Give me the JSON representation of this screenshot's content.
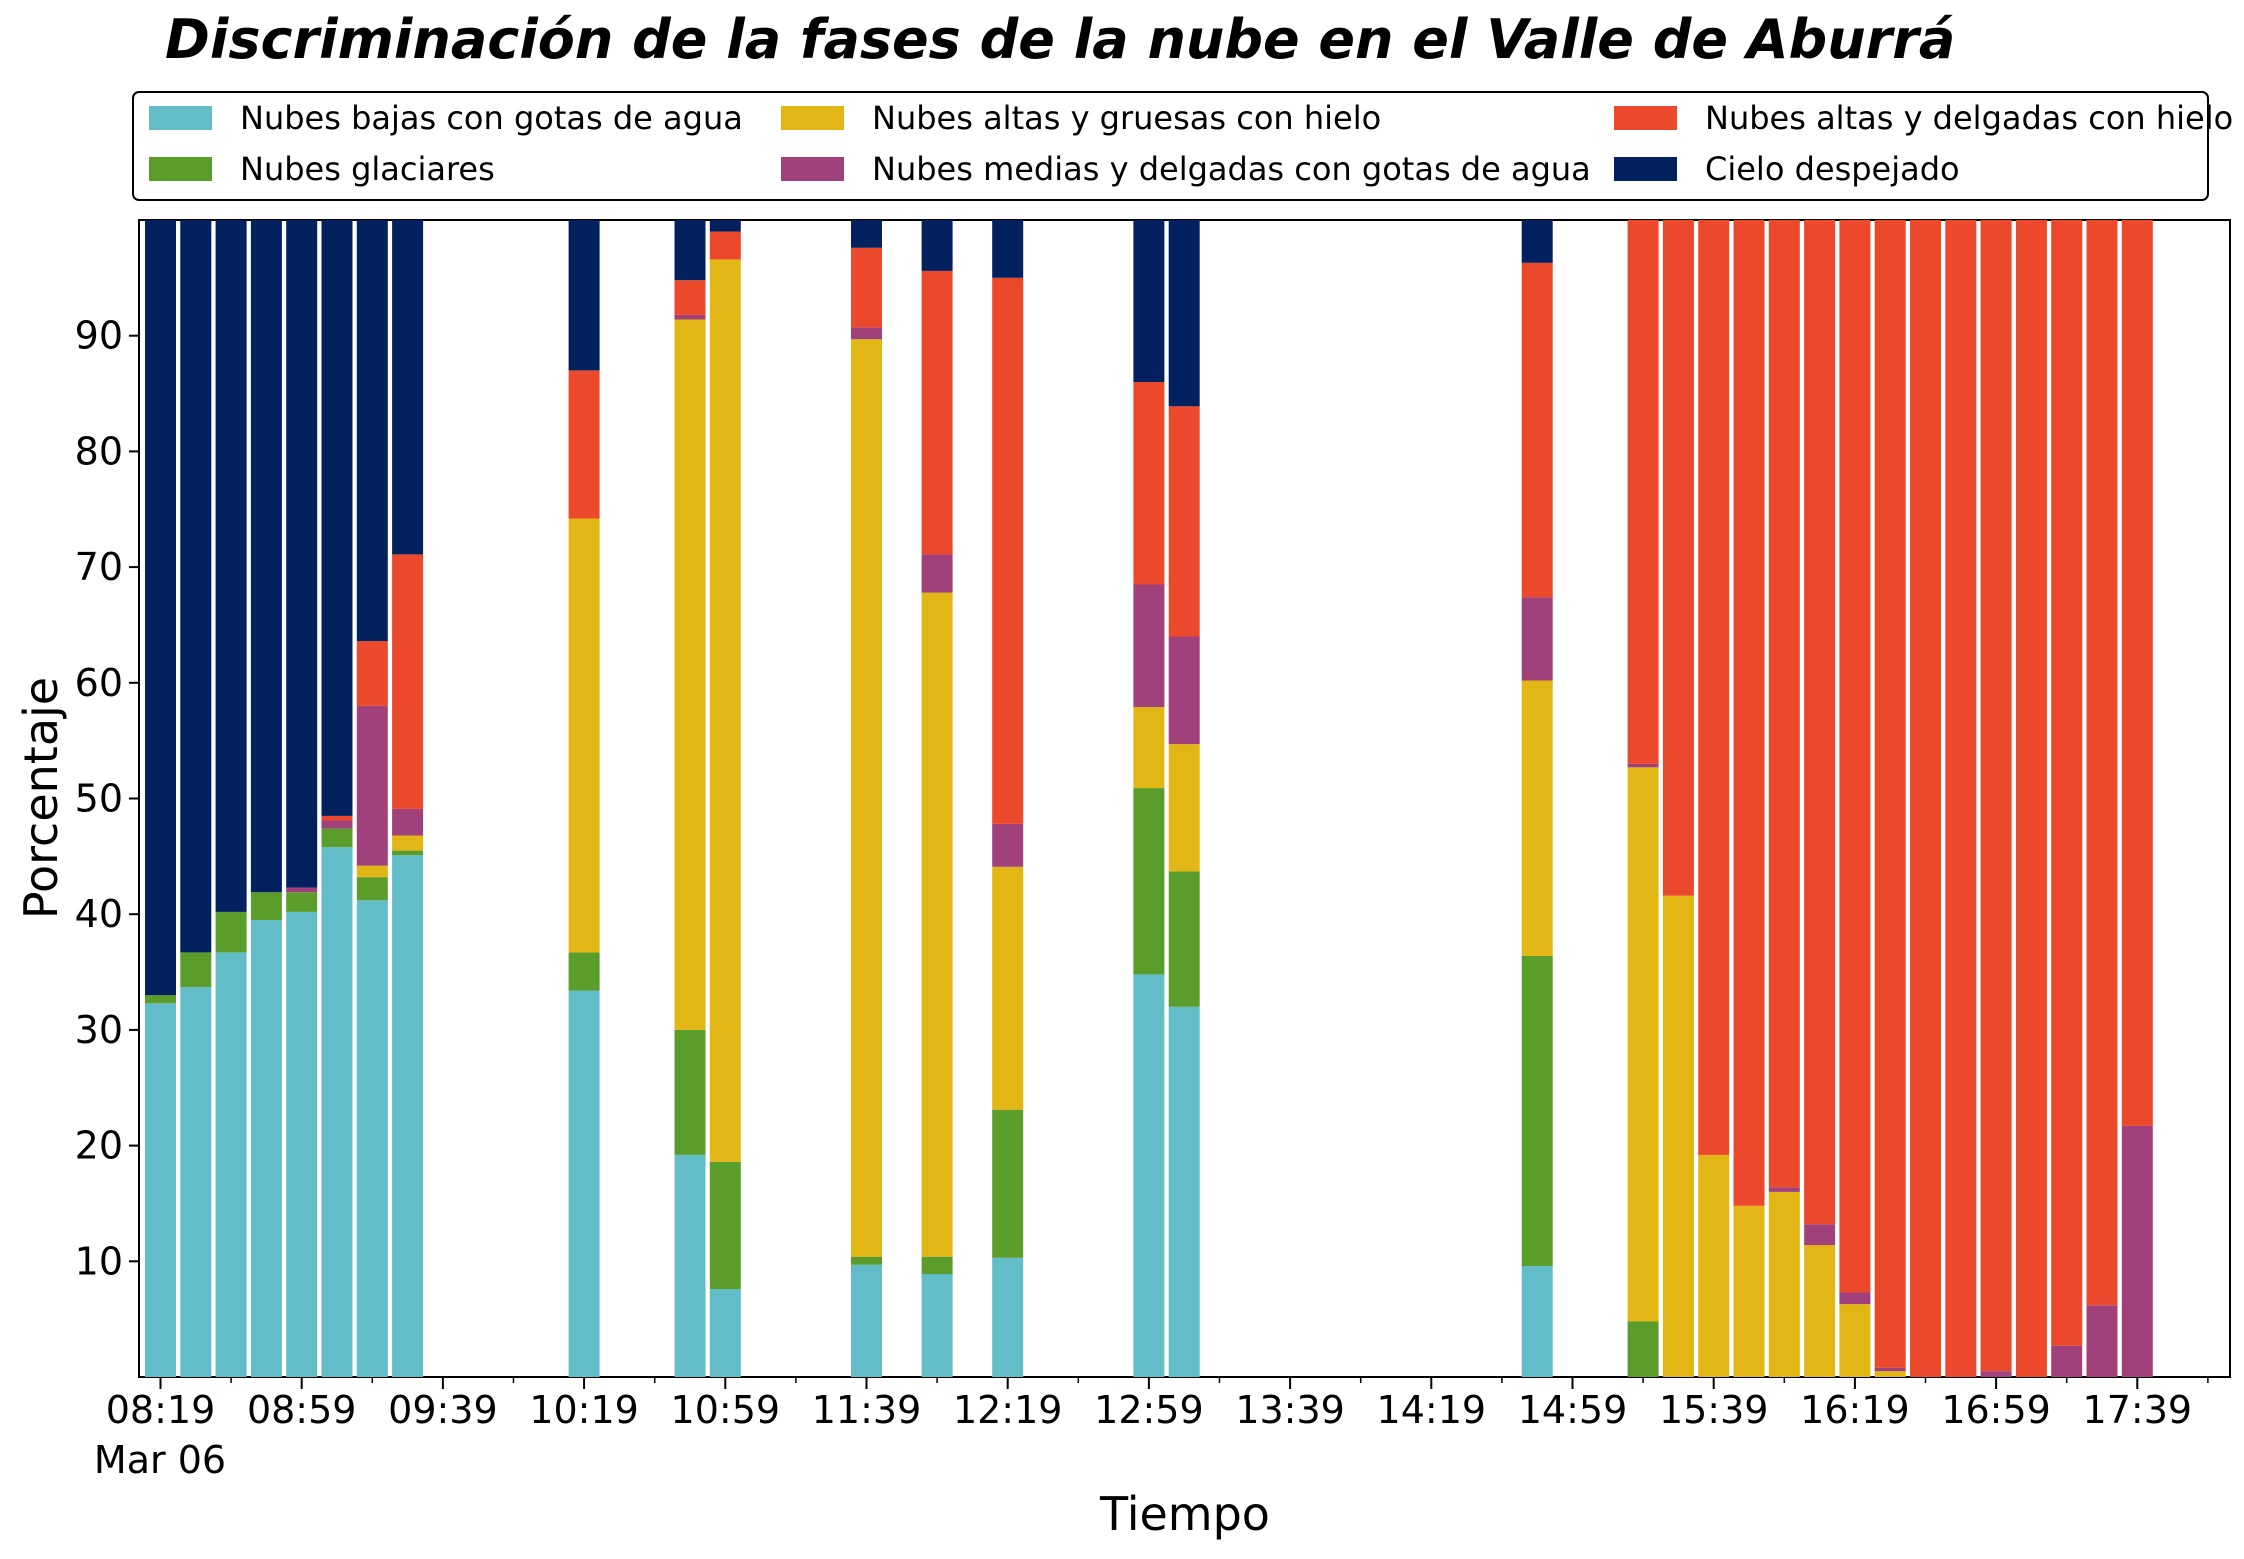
{
  "chart_data": {
    "type": "bar",
    "stacked": true,
    "title": "Discriminación de la fases de la nube en el Valle de Aburrá",
    "xlabel": "Tiempo",
    "ylabel": "Porcentaje",
    "ylim": [
      0,
      100
    ],
    "y_ticks": [
      10,
      20,
      30,
      40,
      50,
      60,
      70,
      80,
      90
    ],
    "x_ticks": [
      "08:19",
      "08:59",
      "09:39",
      "10:19",
      "10:59",
      "11:39",
      "12:19",
      "12:59",
      "13:39",
      "14:19",
      "14:59",
      "15:39",
      "16:19",
      "16:59",
      "17:39"
    ],
    "x_date_label": "Mar 06",
    "grid": false,
    "legend_position": "top",
    "series": [
      {
        "name": "Nubes bajas con gotas de agua",
        "color": "#63bdc8"
      },
      {
        "name": "Nubes glaciares",
        "color": "#5b9d2a"
      },
      {
        "name": "Nubes altas y gruesas con hielo",
        "color": "#e2b614"
      },
      {
        "name": "Nubes medias y delgadas con gotas de agua",
        "color": "#a1417c"
      },
      {
        "name": "Nubes altas y delgadas con hielo",
        "color": "#ec482b"
      },
      {
        "name": "Cielo despejado",
        "color": "#03205f"
      }
    ],
    "bars": [
      {
        "time": "08:19",
        "values": [
          32.3,
          0.7,
          0,
          0,
          0,
          67.0
        ]
      },
      {
        "time": "08:29",
        "values": [
          33.7,
          3.0,
          0,
          0,
          0,
          63.3
        ]
      },
      {
        "time": "08:39",
        "values": [
          36.7,
          3.5,
          0,
          0,
          0,
          59.8
        ]
      },
      {
        "time": "08:49",
        "values": [
          39.5,
          2.4,
          0,
          0,
          0,
          58.1
        ]
      },
      {
        "time": "08:59",
        "values": [
          40.2,
          1.7,
          0,
          0.4,
          0,
          57.7
        ]
      },
      {
        "time": "09:09",
        "values": [
          45.8,
          1.6,
          0,
          0.7,
          0.4,
          51.5
        ]
      },
      {
        "time": "09:19",
        "values": [
          41.2,
          2.0,
          1.0,
          13.8,
          5.6,
          36.4
        ]
      },
      {
        "time": "09:29",
        "values": [
          45.1,
          0.4,
          1.3,
          2.3,
          22.0,
          28.9
        ]
      },
      {
        "time": "10:19",
        "values": [
          33.4,
          3.3,
          37.5,
          0,
          12.8,
          13.0
        ]
      },
      {
        "time": "10:49",
        "values": [
          19.2,
          10.8,
          61.4,
          0.4,
          3.0,
          5.2
        ]
      },
      {
        "time": "10:59",
        "values": [
          7.6,
          11.0,
          78.0,
          0,
          2.4,
          1.0
        ]
      },
      {
        "time": "11:39",
        "values": [
          9.7,
          0.7,
          79.3,
          1.0,
          6.9,
          2.4
        ]
      },
      {
        "time": "11:59",
        "values": [
          8.9,
          1.5,
          57.4,
          3.3,
          24.5,
          4.4
        ]
      },
      {
        "time": "12:19",
        "values": [
          10.3,
          12.8,
          21.0,
          3.7,
          47.2,
          5.0
        ]
      },
      {
        "time": "12:59",
        "values": [
          34.8,
          16.1,
          7.0,
          10.6,
          17.5,
          14.0
        ]
      },
      {
        "time": "13:09",
        "values": [
          32.0,
          11.7,
          11.0,
          9.3,
          19.9,
          16.1
        ]
      },
      {
        "time": "14:49",
        "values": [
          9.6,
          26.8,
          23.8,
          7.2,
          28.9,
          3.7
        ]
      },
      {
        "time": "15:19",
        "values": [
          0,
          4.8,
          47.9,
          0.3,
          47.0,
          0
        ]
      },
      {
        "time": "15:29",
        "values": [
          0,
          0,
          41.6,
          0,
          58.4,
          0
        ]
      },
      {
        "time": "15:39",
        "values": [
          0,
          0,
          19.2,
          0,
          80.8,
          0
        ]
      },
      {
        "time": "15:49",
        "values": [
          0,
          0,
          14.8,
          0,
          85.2,
          0
        ]
      },
      {
        "time": "15:59",
        "values": [
          0,
          0,
          16.0,
          0.4,
          83.6,
          0
        ]
      },
      {
        "time": "16:09",
        "values": [
          0,
          0,
          11.4,
          1.8,
          86.8,
          0
        ]
      },
      {
        "time": "16:19",
        "values": [
          0,
          0,
          6.3,
          1.0,
          92.7,
          0
        ]
      },
      {
        "time": "16:29",
        "values": [
          0,
          0,
          0.5,
          0.3,
          99.2,
          0
        ]
      },
      {
        "time": "16:39",
        "values": [
          0,
          0,
          0,
          0,
          100,
          0
        ]
      },
      {
        "time": "16:49",
        "values": [
          0,
          0,
          0,
          0,
          100,
          0
        ]
      },
      {
        "time": "16:59",
        "values": [
          0,
          0,
          0,
          0.5,
          99.5,
          0
        ]
      },
      {
        "time": "17:09",
        "values": [
          0,
          0,
          0,
          0,
          100,
          0
        ]
      },
      {
        "time": "17:19",
        "values": [
          0,
          0,
          0,
          2.7,
          97.3,
          0
        ]
      },
      {
        "time": "17:29",
        "values": [
          0,
          0,
          0,
          6.2,
          93.8,
          0
        ]
      },
      {
        "time": "17:39",
        "values": [
          0,
          0,
          0,
          21.7,
          78.3,
          0
        ]
      }
    ]
  }
}
